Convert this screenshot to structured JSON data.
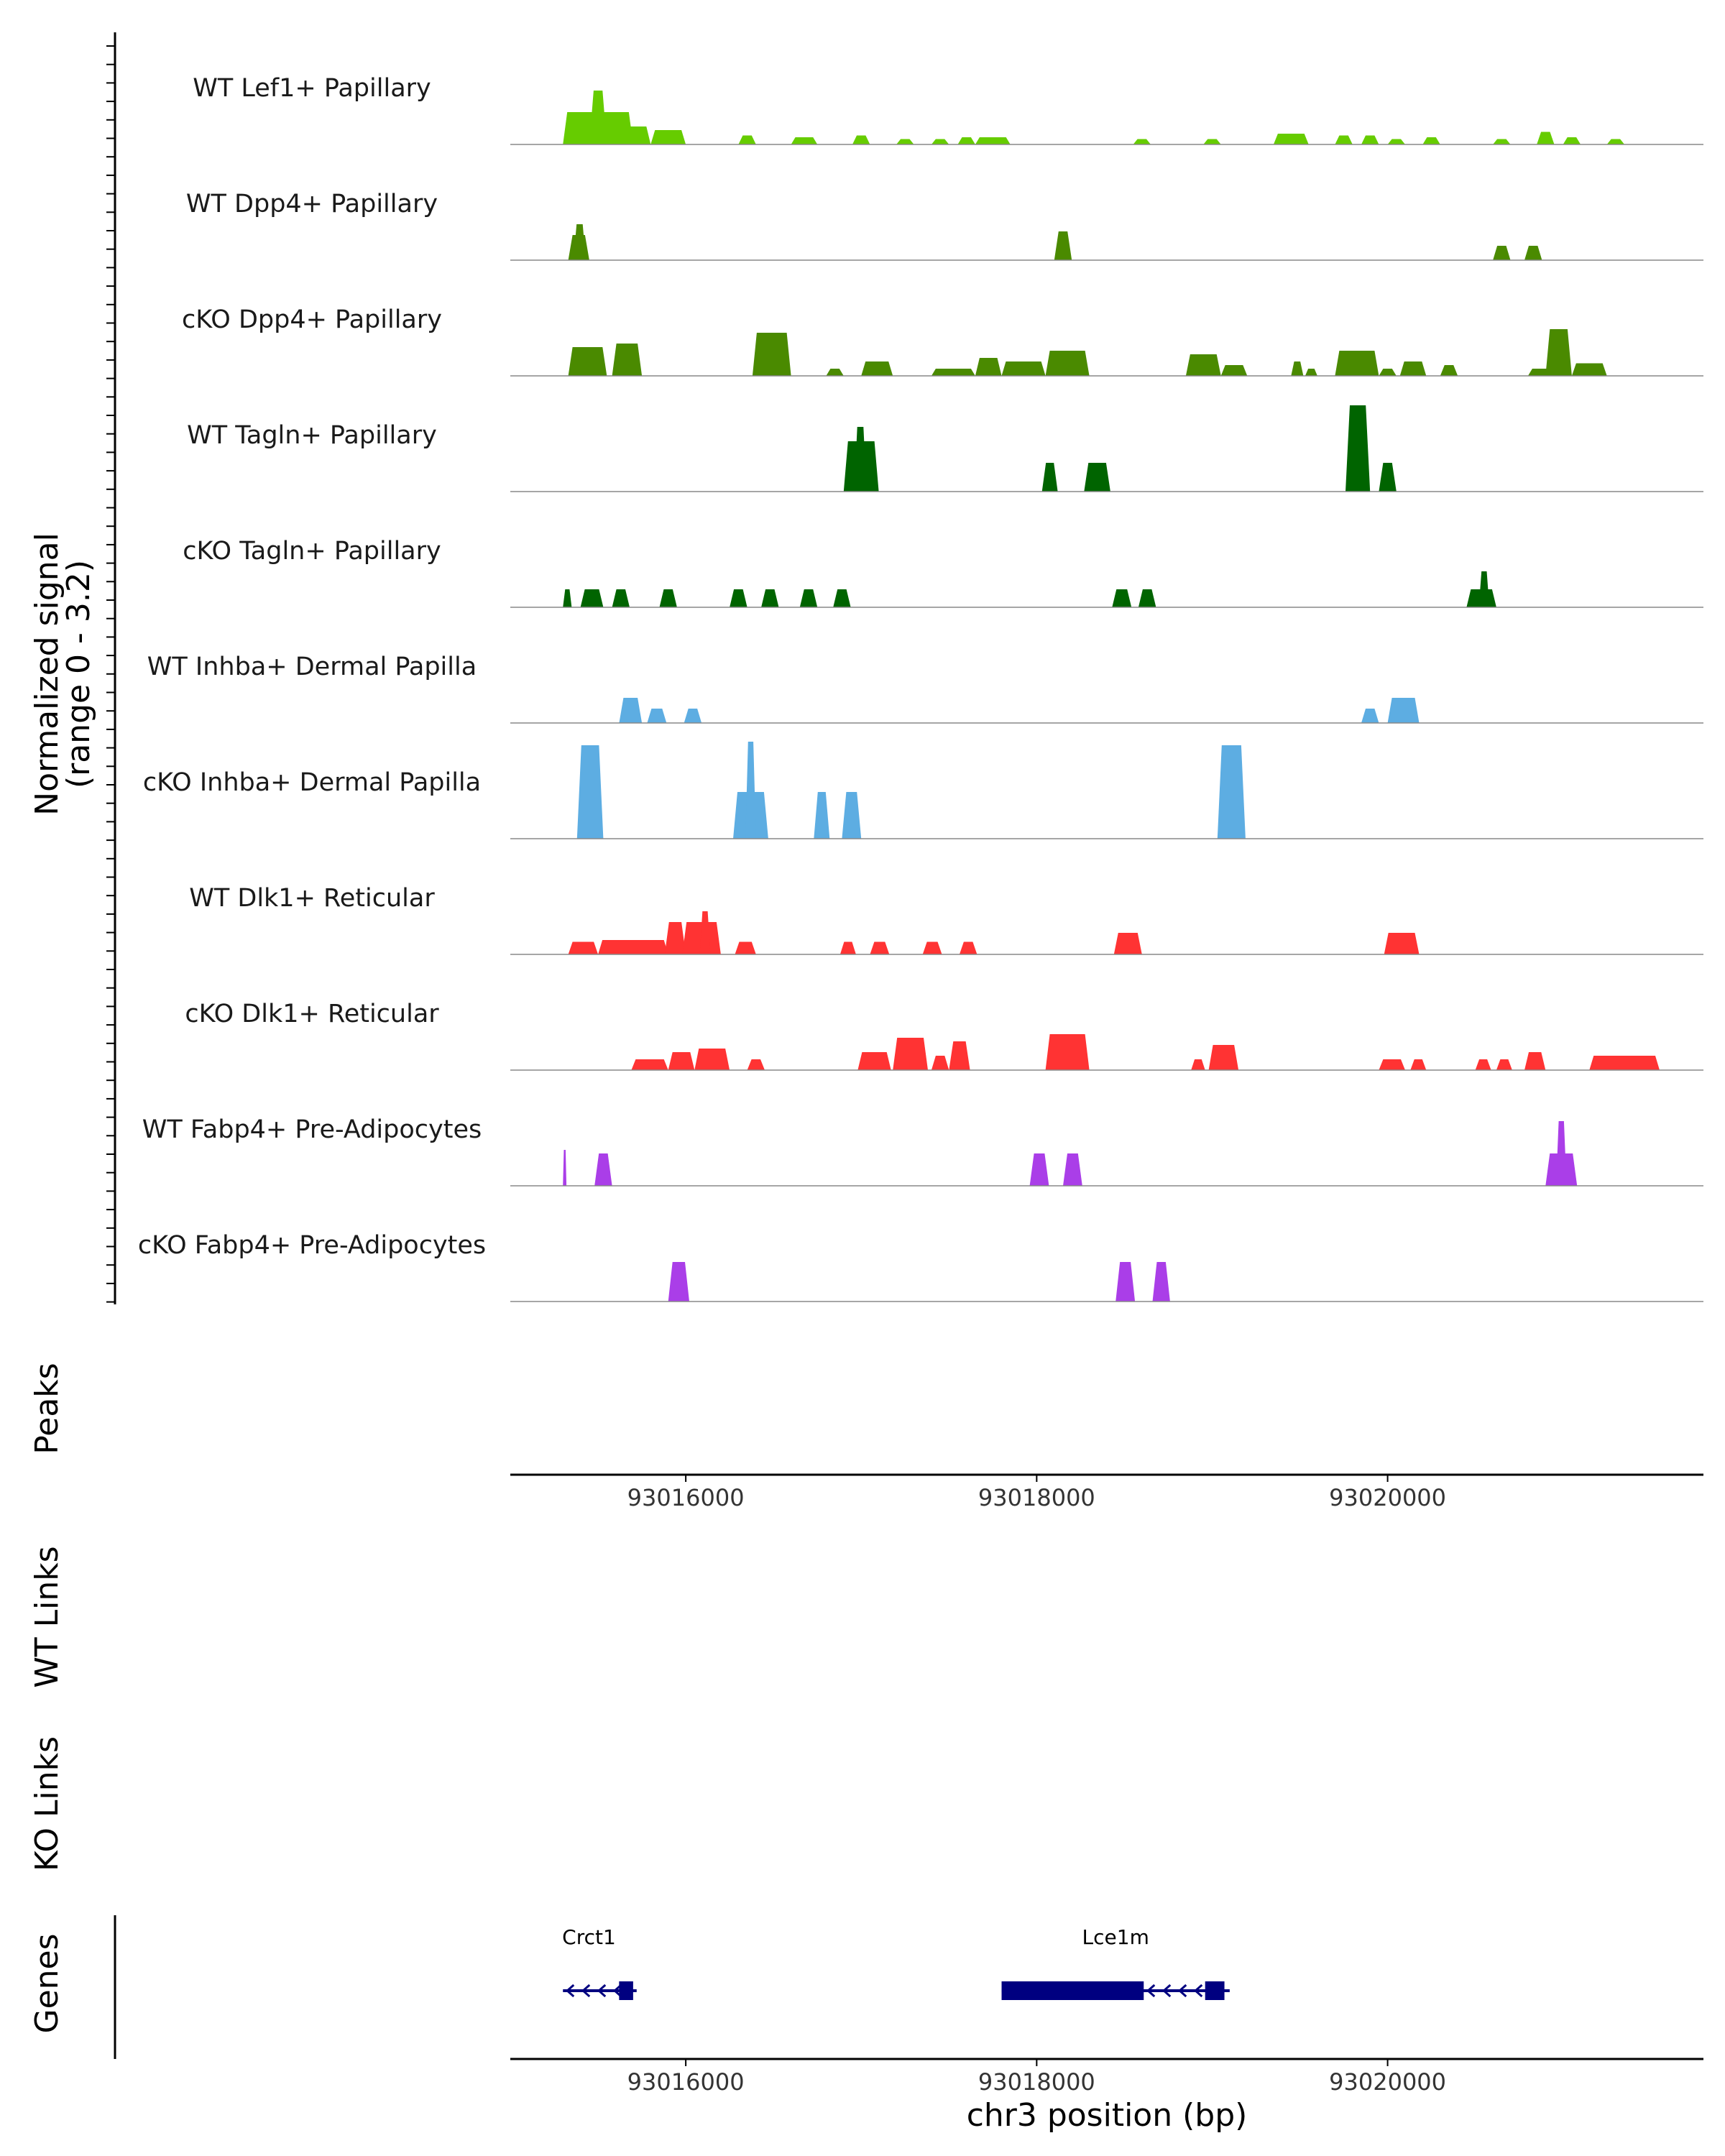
{
  "chart_data": {
    "type": "area",
    "title": "",
    "ylabel": "Normalized signal\n(range 0 - 3.2)",
    "ylim": [
      0,
      3.2
    ],
    "xlabel": "chr3 position (bp)",
    "xlim": [
      93015000,
      93021800
    ],
    "x_ticks": [
      93016000,
      93018000,
      93020000
    ],
    "x_tick_labels": [
      "93016000",
      "93018000",
      "93020000"
    ],
    "colors": {
      "light_green": "#66cc00",
      "olive_green": "#4a8a00",
      "dark_green": "#006400",
      "blue": "#5dade2",
      "red": "#ff3333",
      "purple": "#aa3ee8",
      "gene": "#000080"
    },
    "series": [
      {
        "name": "WT Lef1+ Papillary",
        "color": "#66cc00",
        "peaks": [
          [
            93015300,
            93015700,
            0.9
          ],
          [
            93015450,
            93015550,
            1.5
          ],
          [
            93015600,
            93015800,
            0.5
          ],
          [
            93015800,
            93016000,
            0.4
          ],
          [
            93016300,
            93016400,
            0.25
          ],
          [
            93016600,
            93016750,
            0.2
          ],
          [
            93016950,
            93017050,
            0.25
          ],
          [
            93017200,
            93017300,
            0.15
          ],
          [
            93017400,
            93017500,
            0.15
          ],
          [
            93017550,
            93017650,
            0.2
          ],
          [
            93017650,
            93017850,
            0.2
          ],
          [
            93018550,
            93018650,
            0.15
          ],
          [
            93018950,
            93019050,
            0.15
          ],
          [
            93019350,
            93019550,
            0.3
          ],
          [
            93019700,
            93019800,
            0.25
          ],
          [
            93019850,
            93019950,
            0.25
          ],
          [
            93020000,
            93020100,
            0.15
          ],
          [
            93020200,
            93020300,
            0.2
          ],
          [
            93020600,
            93020700,
            0.15
          ],
          [
            93020850,
            93020950,
            0.35
          ],
          [
            93021000,
            93021100,
            0.2
          ],
          [
            93021250,
            93021350,
            0.15
          ]
        ]
      },
      {
        "name": "WT Dpp4+ Papillary",
        "color": "#4a8a00",
        "peaks": [
          [
            93015330,
            93015450,
            0.7
          ],
          [
            93015360,
            93015430,
            1.0
          ],
          [
            93018100,
            93018200,
            0.8
          ],
          [
            93020600,
            93020700,
            0.4
          ],
          [
            93020780,
            93020880,
            0.4
          ]
        ]
      },
      {
        "name": "cKO Dpp4+ Papillary",
        "color": "#4a8a00",
        "peaks": [
          [
            93015330,
            93015550,
            0.8
          ],
          [
            93015580,
            93015750,
            0.9
          ],
          [
            93016380,
            93016600,
            1.2
          ],
          [
            93016800,
            93016900,
            0.2
          ],
          [
            93017000,
            93017180,
            0.4
          ],
          [
            93017400,
            93017650,
            0.2
          ],
          [
            93017650,
            93017800,
            0.5
          ],
          [
            93017800,
            93018050,
            0.4
          ],
          [
            93018050,
            93018300,
            0.7
          ],
          [
            93018850,
            93019050,
            0.6
          ],
          [
            93019050,
            93019200,
            0.3
          ],
          [
            93019450,
            93019520,
            0.4
          ],
          [
            93019530,
            93019600,
            0.2
          ],
          [
            93019700,
            93019950,
            0.7
          ],
          [
            93019950,
            93020050,
            0.2
          ],
          [
            93020070,
            93020220,
            0.4
          ],
          [
            93020300,
            93020400,
            0.3
          ],
          [
            93020800,
            93020950,
            0.2
          ],
          [
            93020900,
            93021050,
            1.3
          ],
          [
            93021050,
            93021250,
            0.35
          ]
        ]
      },
      {
        "name": "WT Tagln+ Papillary",
        "color": "#006400",
        "peaks": [
          [
            93016900,
            93017100,
            1.4
          ],
          [
            93016960,
            93017030,
            1.8
          ],
          [
            93018030,
            93018120,
            0.8
          ],
          [
            93018270,
            93018420,
            0.8
          ],
          [
            93019760,
            93019900,
            2.4
          ],
          [
            93019950,
            93020050,
            0.8
          ]
        ]
      },
      {
        "name": "cKO Tagln+ Papillary",
        "color": "#006400",
        "peaks": [
          [
            93015300,
            93015350,
            0.5
          ],
          [
            93015400,
            93015530,
            0.5
          ],
          [
            93015580,
            93015680,
            0.5
          ],
          [
            93015850,
            93015950,
            0.5
          ],
          [
            93016250,
            93016350,
            0.5
          ],
          [
            93016430,
            93016530,
            0.5
          ],
          [
            93016650,
            93016750,
            0.5
          ],
          [
            93016840,
            93016940,
            0.5
          ],
          [
            93018430,
            93018540,
            0.5
          ],
          [
            93018580,
            93018680,
            0.5
          ],
          [
            93020450,
            93020620,
            0.5
          ],
          [
            93020520,
            93020580,
            1.0
          ]
        ]
      },
      {
        "name": "WT Inhba+ Dermal Papilla",
        "color": "#5dade2",
        "peaks": [
          [
            93015620,
            93015750,
            0.7
          ],
          [
            93015780,
            93015890,
            0.4
          ],
          [
            93015990,
            93016090,
            0.4
          ],
          [
            93019850,
            93019950,
            0.4
          ],
          [
            93020000,
            93020180,
            0.7
          ]
        ]
      },
      {
        "name": "cKO Inhba+ Dermal Papilla",
        "color": "#5dade2",
        "peaks": [
          [
            93015380,
            93015530,
            2.6
          ],
          [
            93016270,
            93016470,
            1.3
          ],
          [
            93016340,
            93016400,
            2.7
          ],
          [
            93016730,
            93016820,
            1.3
          ],
          [
            93016890,
            93017000,
            1.3
          ],
          [
            93019030,
            93019190,
            2.6
          ]
        ]
      },
      {
        "name": "WT Dlk1+ Reticular",
        "color": "#ff3333",
        "peaks": [
          [
            93015330,
            93015500,
            0.35
          ],
          [
            93015500,
            93015900,
            0.4
          ],
          [
            93015880,
            93016000,
            0.9
          ],
          [
            93015980,
            93016200,
            0.9
          ],
          [
            93016080,
            93016140,
            1.2
          ],
          [
            93016280,
            93016400,
            0.35
          ],
          [
            93016880,
            93016970,
            0.35
          ],
          [
            93017050,
            93017160,
            0.35
          ],
          [
            93017350,
            93017460,
            0.35
          ],
          [
            93017560,
            93017660,
            0.35
          ],
          [
            93018440,
            93018600,
            0.6
          ],
          [
            93019980,
            93020180,
            0.6
          ]
        ]
      },
      {
        "name": "cKO Dlk1+ Reticular",
        "color": "#ff3333",
        "peaks": [
          [
            93015690,
            93015900,
            0.3
          ],
          [
            93015900,
            93016050,
            0.5
          ],
          [
            93016050,
            93016250,
            0.6
          ],
          [
            93016350,
            93016450,
            0.3
          ],
          [
            93016980,
            93017170,
            0.5
          ],
          [
            93017180,
            93017380,
            0.9
          ],
          [
            93017400,
            93017500,
            0.4
          ],
          [
            93017500,
            93017620,
            0.8
          ],
          [
            93018050,
            93018300,
            1.0
          ],
          [
            93018880,
            93018960,
            0.3
          ],
          [
            93018980,
            93019150,
            0.7
          ],
          [
            93019950,
            93020100,
            0.3
          ],
          [
            93020130,
            93020220,
            0.3
          ],
          [
            93020500,
            93020590,
            0.3
          ],
          [
            93020620,
            93020710,
            0.3
          ],
          [
            93020780,
            93020900,
            0.5
          ],
          [
            93021150,
            93021550,
            0.4
          ]
        ]
      },
      {
        "name": "WT Fabp4+ Pre-Adipocytes",
        "color": "#aa3ee8",
        "peaks": [
          [
            93015300,
            93015320,
            1.0
          ],
          [
            93015480,
            93015580,
            0.9
          ],
          [
            93017960,
            93018070,
            0.9
          ],
          [
            93018150,
            93018260,
            0.9
          ],
          [
            93020900,
            93021080,
            0.9
          ],
          [
            93020960,
            93021020,
            1.8
          ]
        ]
      },
      {
        "name": "cKO Fabp4+ Pre-Adipocytes",
        "color": "#aa3ee8",
        "peaks": [
          [
            93015900,
            93016020,
            1.1
          ],
          [
            93018450,
            93018560,
            1.1
          ],
          [
            93018660,
            93018760,
            1.1
          ]
        ]
      }
    ],
    "gene_tracks": {
      "labels": [
        "Peaks",
        "WT Links",
        "KO Links",
        "Genes"
      ],
      "genes": [
        {
          "name": "Crct1",
          "strand": "-",
          "start": 93015300,
          "end": 93015720,
          "exons": [
            [
              93015620,
              93015700
            ]
          ]
        },
        {
          "name": "Lce1m",
          "strand": "-",
          "start": 93017800,
          "end": 93019100,
          "exons": [
            [
              93017800,
              93018610
            ],
            [
              93018960,
              93019070
            ]
          ]
        }
      ]
    }
  }
}
